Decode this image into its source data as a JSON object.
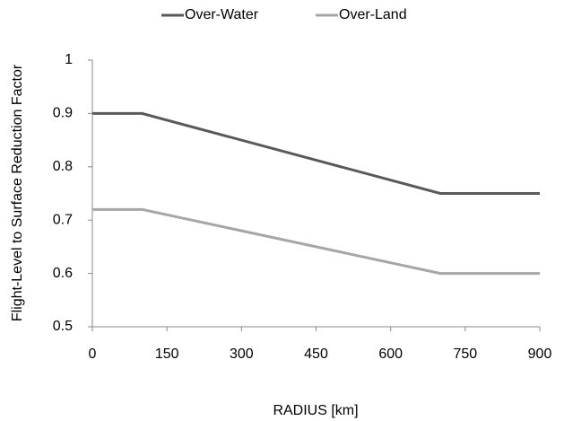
{
  "chart_data": {
    "type": "line",
    "x_label": "RADIUS [km]",
    "y_label": "Flight-Level to Surface Reduction Factor",
    "x": [
      0,
      100,
      700,
      900
    ],
    "series": [
      {
        "name": "Over-Water",
        "color": "#595959",
        "values": [
          0.9,
          0.9,
          0.75,
          0.75
        ]
      },
      {
        "name": "Over-Land",
        "color": "#a6a6a6",
        "values": [
          0.72,
          0.72,
          0.6,
          0.6
        ]
      }
    ],
    "xlim": [
      0,
      900
    ],
    "xticks": [
      0,
      150,
      300,
      450,
      600,
      750,
      900
    ],
    "ylim": [
      0.5,
      1
    ],
    "yticks": [
      0.5,
      0.6,
      0.7,
      0.8,
      0.9,
      1
    ],
    "grid": false,
    "legend": "top"
  }
}
